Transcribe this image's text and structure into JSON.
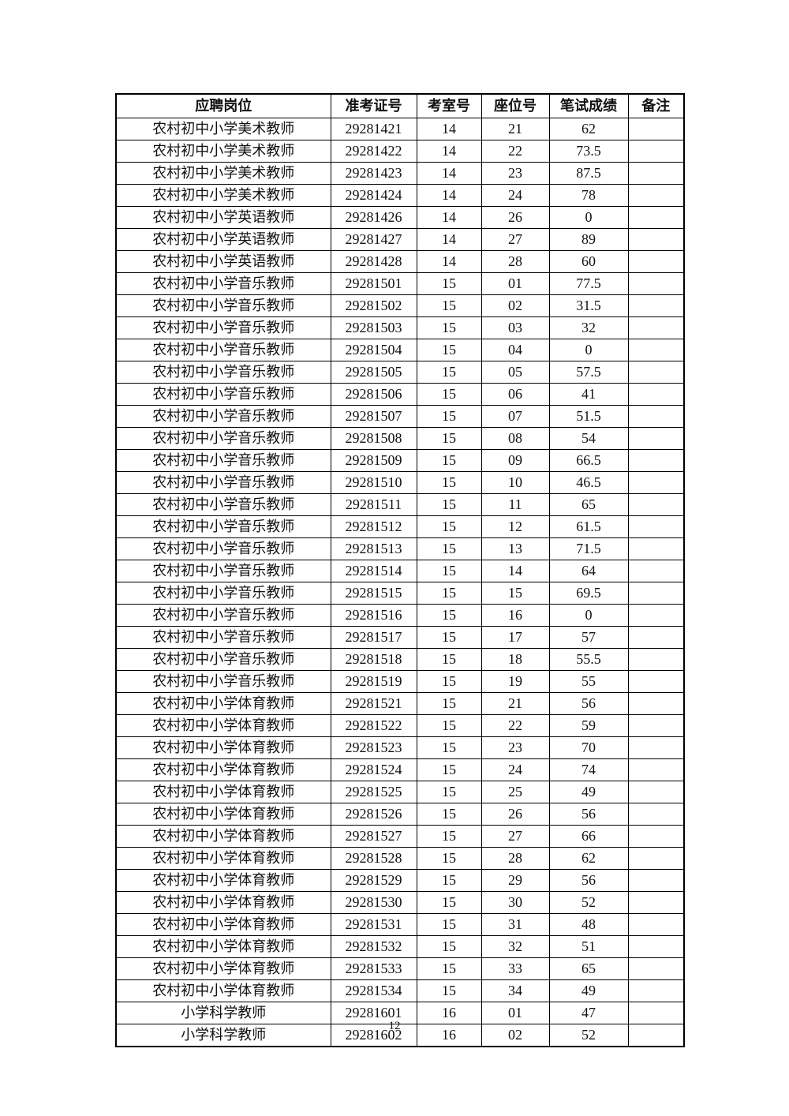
{
  "table": {
    "headers": [
      "应聘岗位",
      "准考证号",
      "考室号",
      "座位号",
      "笔试成绩",
      "备注"
    ],
    "rows": [
      [
        "农村初中小学美术教师",
        "29281421",
        "14",
        "21",
        "62",
        ""
      ],
      [
        "农村初中小学美术教师",
        "29281422",
        "14",
        "22",
        "73.5",
        ""
      ],
      [
        "农村初中小学美术教师",
        "29281423",
        "14",
        "23",
        "87.5",
        ""
      ],
      [
        "农村初中小学美术教师",
        "29281424",
        "14",
        "24",
        "78",
        ""
      ],
      [
        "农村初中小学英语教师",
        "29281426",
        "14",
        "26",
        "0",
        ""
      ],
      [
        "农村初中小学英语教师",
        "29281427",
        "14",
        "27",
        "89",
        ""
      ],
      [
        "农村初中小学英语教师",
        "29281428",
        "14",
        "28",
        "60",
        ""
      ],
      [
        "农村初中小学音乐教师",
        "29281501",
        "15",
        "01",
        "77.5",
        ""
      ],
      [
        "农村初中小学音乐教师",
        "29281502",
        "15",
        "02",
        "31.5",
        ""
      ],
      [
        "农村初中小学音乐教师",
        "29281503",
        "15",
        "03",
        "32",
        ""
      ],
      [
        "农村初中小学音乐教师",
        "29281504",
        "15",
        "04",
        "0",
        ""
      ],
      [
        "农村初中小学音乐教师",
        "29281505",
        "15",
        "05",
        "57.5",
        ""
      ],
      [
        "农村初中小学音乐教师",
        "29281506",
        "15",
        "06",
        "41",
        ""
      ],
      [
        "农村初中小学音乐教师",
        "29281507",
        "15",
        "07",
        "51.5",
        ""
      ],
      [
        "农村初中小学音乐教师",
        "29281508",
        "15",
        "08",
        "54",
        ""
      ],
      [
        "农村初中小学音乐教师",
        "29281509",
        "15",
        "09",
        "66.5",
        ""
      ],
      [
        "农村初中小学音乐教师",
        "29281510",
        "15",
        "10",
        "46.5",
        ""
      ],
      [
        "农村初中小学音乐教师",
        "29281511",
        "15",
        "11",
        "65",
        ""
      ],
      [
        "农村初中小学音乐教师",
        "29281512",
        "15",
        "12",
        "61.5",
        ""
      ],
      [
        "农村初中小学音乐教师",
        "29281513",
        "15",
        "13",
        "71.5",
        ""
      ],
      [
        "农村初中小学音乐教师",
        "29281514",
        "15",
        "14",
        "64",
        ""
      ],
      [
        "农村初中小学音乐教师",
        "29281515",
        "15",
        "15",
        "69.5",
        ""
      ],
      [
        "农村初中小学音乐教师",
        "29281516",
        "15",
        "16",
        "0",
        ""
      ],
      [
        "农村初中小学音乐教师",
        "29281517",
        "15",
        "17",
        "57",
        ""
      ],
      [
        "农村初中小学音乐教师",
        "29281518",
        "15",
        "18",
        "55.5",
        ""
      ],
      [
        "农村初中小学音乐教师",
        "29281519",
        "15",
        "19",
        "55",
        ""
      ],
      [
        "农村初中小学体育教师",
        "29281521",
        "15",
        "21",
        "56",
        ""
      ],
      [
        "农村初中小学体育教师",
        "29281522",
        "15",
        "22",
        "59",
        ""
      ],
      [
        "农村初中小学体育教师",
        "29281523",
        "15",
        "23",
        "70",
        ""
      ],
      [
        "农村初中小学体育教师",
        "29281524",
        "15",
        "24",
        "74",
        ""
      ],
      [
        "农村初中小学体育教师",
        "29281525",
        "15",
        "25",
        "49",
        ""
      ],
      [
        "农村初中小学体育教师",
        "29281526",
        "15",
        "26",
        "56",
        ""
      ],
      [
        "农村初中小学体育教师",
        "29281527",
        "15",
        "27",
        "66",
        ""
      ],
      [
        "农村初中小学体育教师",
        "29281528",
        "15",
        "28",
        "62",
        ""
      ],
      [
        "农村初中小学体育教师",
        "29281529",
        "15",
        "29",
        "56",
        ""
      ],
      [
        "农村初中小学体育教师",
        "29281530",
        "15",
        "30",
        "52",
        ""
      ],
      [
        "农村初中小学体育教师",
        "29281531",
        "15",
        "31",
        "48",
        ""
      ],
      [
        "农村初中小学体育教师",
        "29281532",
        "15",
        "32",
        "51",
        ""
      ],
      [
        "农村初中小学体育教师",
        "29281533",
        "15",
        "33",
        "65",
        ""
      ],
      [
        "农村初中小学体育教师",
        "29281534",
        "15",
        "34",
        "49",
        ""
      ],
      [
        "小学科学教师",
        "29281601",
        "16",
        "01",
        "47",
        ""
      ],
      [
        "小学科学教师",
        "29281602",
        "16",
        "02",
        "52",
        ""
      ]
    ]
  },
  "footer": {
    "page_number": "12"
  }
}
